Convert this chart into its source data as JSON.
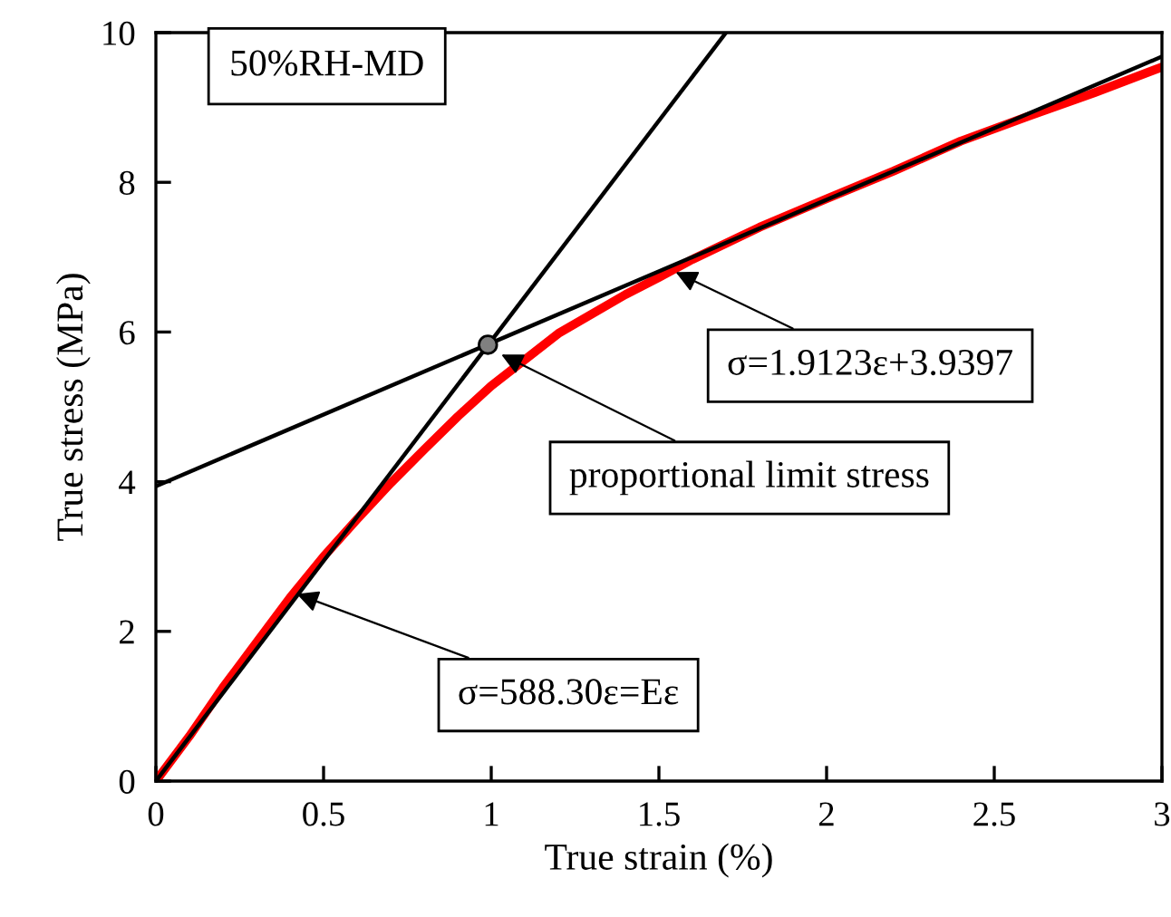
{
  "chart_data": {
    "type": "line",
    "xlabel": "True strain (%)",
    "ylabel": "True stress (MPa)",
    "xlim": [
      0,
      3
    ],
    "xticks": [
      0,
      0.5,
      1,
      1.5,
      2,
      2.5,
      3
    ],
    "ylim": [
      0,
      10
    ],
    "yticks": [
      0,
      2,
      4,
      6,
      8,
      10
    ],
    "grid": false,
    "legend": false,
    "series": [
      {
        "color": "#ff0000",
        "x": [
          0,
          0.1,
          0.2,
          0.3,
          0.4,
          0.5,
          0.6,
          0.7,
          0.8,
          0.9,
          1.0,
          1.2,
          1.4,
          1.5,
          1.6,
          1.8,
          2.0,
          2.2,
          2.4,
          2.6,
          2.8,
          3.0
        ],
        "values": [
          0,
          0.6,
          1.25,
          1.85,
          2.45,
          3.0,
          3.5,
          3.98,
          4.43,
          4.87,
          5.28,
          5.98,
          6.5,
          6.73,
          6.97,
          7.4,
          7.78,
          8.15,
          8.55,
          8.88,
          9.2,
          9.54
        ]
      },
      {
        "color": "#000000",
        "x": [
          0,
          1.7
        ],
        "values": [
          0,
          10.0
        ]
      },
      {
        "color": "#000000",
        "x": [
          0,
          3
        ],
        "values": [
          3.94,
          9.68
        ]
      },
      {
        "type": "scatter",
        "color": "#808080",
        "marker": "circle",
        "x": [
          0.99
        ],
        "values": [
          5.83
        ]
      }
    ],
    "annotations": [
      "50%RH-MD",
      {
        "text": "σ=1.9123ε+3.9397",
        "x": 1.55,
        "y": 6.8
      },
      {
        "text": "proportional limit stress",
        "x": 1.03,
        "y": 5.7
      },
      {
        "text": "σ=588.30ε=Eε",
        "x": 0.42,
        "y": 2.5
      }
    ]
  }
}
